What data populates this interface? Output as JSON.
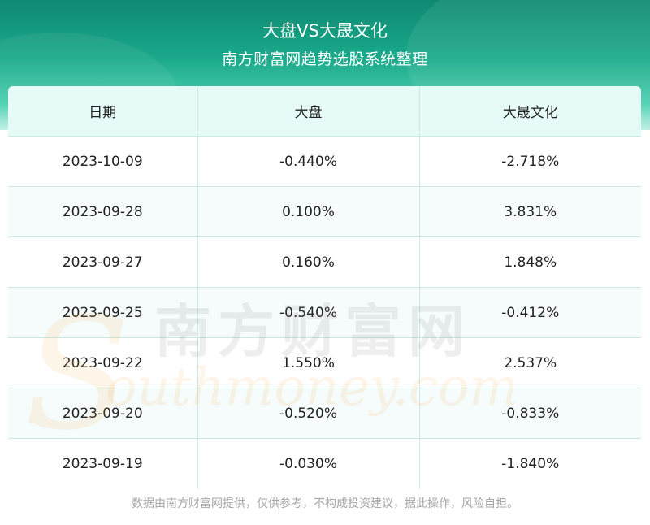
{
  "header": {
    "title": "大盘VS大晟文化",
    "subtitle": "南方财富网趋势选股系统整理"
  },
  "table": {
    "columns": [
      "日期",
      "大盘",
      "大晟文化"
    ],
    "rows": [
      [
        "2023-10-09",
        "-0.440%",
        "-2.718%"
      ],
      [
        "2023-09-28",
        "0.100%",
        "3.831%"
      ],
      [
        "2023-09-27",
        "0.160%",
        "1.848%"
      ],
      [
        "2023-09-25",
        "-0.540%",
        "-0.412%"
      ],
      [
        "2023-09-22",
        "1.550%",
        "2.537%"
      ],
      [
        "2023-09-20",
        "-0.520%",
        "-0.833%"
      ],
      [
        "2023-09-19",
        "-0.030%",
        "-1.840%"
      ]
    ]
  },
  "watermark": {
    "cn": "南方财富网",
    "en": "outhmoney.com",
    "s": "S"
  },
  "footer": {
    "disclaimer": "数据由南方财富网提供，仅供参考，不构成投资建议，据此操作，风险自担。"
  },
  "colors": {
    "header": "#1aa98a",
    "table_head": "#e6fbf8",
    "border": "#c9e9e2"
  }
}
